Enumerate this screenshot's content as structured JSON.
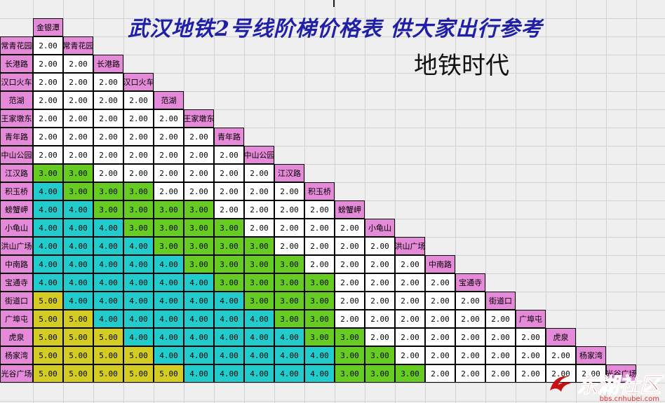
{
  "title": "武汉地铁2号线阶梯价格表 供大家出行参考",
  "subtitle": "地铁时代",
  "stations": [
    "金银潭",
    "常青花园",
    "长港路",
    "汉口火车",
    "范湖",
    "王家墩东",
    "青年路",
    "中山公园",
    "江汉路",
    "积玉桥",
    "螃蟹岬",
    "小龟山",
    "洪山广场",
    "中南路",
    "宝通寺",
    "街道口",
    "广埠屯",
    "虎泉",
    "杨家湾",
    "光谷广场"
  ],
  "fare_colors": {
    "2.00": "#ffffff",
    "3.00": "#66cc22",
    "4.00": "#22cccc",
    "5.00": "#d4cc22"
  },
  "fares": [
    [],
    [
      "2.00"
    ],
    [
      "2.00",
      "2.00"
    ],
    [
      "2.00",
      "2.00",
      "2.00"
    ],
    [
      "2.00",
      "2.00",
      "2.00",
      "2.00"
    ],
    [
      "2.00",
      "2.00",
      "2.00",
      "2.00",
      "2.00"
    ],
    [
      "2.00",
      "2.00",
      "2.00",
      "2.00",
      "2.00",
      "2.00"
    ],
    [
      "2.00",
      "2.00",
      "2.00",
      "2.00",
      "2.00",
      "2.00",
      "2.00"
    ],
    [
      "3.00",
      "3.00",
      "2.00",
      "2.00",
      "2.00",
      "2.00",
      "2.00",
      "2.00"
    ],
    [
      "4.00",
      "3.00",
      "3.00",
      "3.00",
      "2.00",
      "2.00",
      "2.00",
      "2.00",
      "2.00"
    ],
    [
      "4.00",
      "4.00",
      "3.00",
      "3.00",
      "3.00",
      "3.00",
      "2.00",
      "2.00",
      "2.00",
      "2.00"
    ],
    [
      "4.00",
      "4.00",
      "4.00",
      "3.00",
      "3.00",
      "3.00",
      "3.00",
      "2.00",
      "2.00",
      "2.00",
      "2.00"
    ],
    [
      "4.00",
      "4.00",
      "4.00",
      "4.00",
      "3.00",
      "3.00",
      "3.00",
      "3.00",
      "2.00",
      "2.00",
      "2.00",
      "2.00"
    ],
    [
      "4.00",
      "4.00",
      "4.00",
      "4.00",
      "4.00",
      "3.00",
      "3.00",
      "3.00",
      "3.00",
      "2.00",
      "2.00",
      "2.00",
      "2.00"
    ],
    [
      "4.00",
      "4.00",
      "4.00",
      "4.00",
      "4.00",
      "4.00",
      "3.00",
      "3.00",
      "3.00",
      "3.00",
      "2.00",
      "2.00",
      "2.00",
      "2.00"
    ],
    [
      "5.00",
      "4.00",
      "4.00",
      "4.00",
      "4.00",
      "4.00",
      "4.00",
      "3.00",
      "3.00",
      "3.00",
      "2.00",
      "2.00",
      "2.00",
      "2.00",
      "2.00"
    ],
    [
      "5.00",
      "5.00",
      "4.00",
      "4.00",
      "4.00",
      "4.00",
      "4.00",
      "4.00",
      "3.00",
      "3.00",
      "2.00",
      "2.00",
      "2.00",
      "2.00",
      "2.00",
      "2.00"
    ],
    [
      "5.00",
      "5.00",
      "5.00",
      "4.00",
      "4.00",
      "4.00",
      "4.00",
      "4.00",
      "4.00",
      "3.00",
      "3.00",
      "2.00",
      "2.00",
      "2.00",
      "2.00",
      "2.00",
      "2.00"
    ],
    [
      "5.00",
      "5.00",
      "5.00",
      "5.00",
      "4.00",
      "4.00",
      "4.00",
      "4.00",
      "4.00",
      "4.00",
      "3.00",
      "3.00",
      "2.00",
      "2.00",
      "2.00",
      "2.00",
      "2.00",
      "2.00"
    ],
    [
      "5.00",
      "5.00",
      "5.00",
      "5.00",
      "5.00",
      "4.00",
      "4.00",
      "4.00",
      "4.00",
      "4.00",
      "3.00",
      "3.00",
      "3.00",
      "2.00",
      "2.00",
      "2.00",
      "2.00",
      "2.00",
      "2.00"
    ]
  ],
  "watermark": {
    "text": "东湖社区",
    "url": "bbs.cnhubei.com",
    "icon": "red-swirl-logo-icon"
  }
}
